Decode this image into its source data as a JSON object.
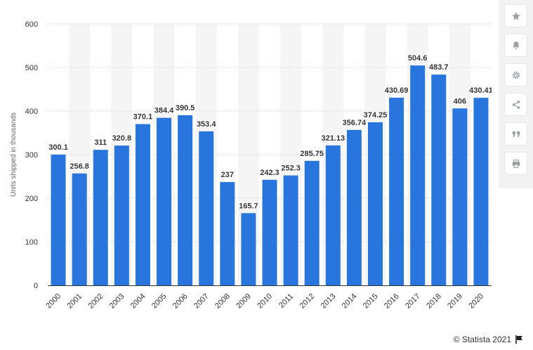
{
  "chart_data": {
    "type": "bar",
    "categories": [
      "2000",
      "2001",
      "2002",
      "2003",
      "2004",
      "2005",
      "2006",
      "2007",
      "2008",
      "2009",
      "2010",
      "2011",
      "2012",
      "2013",
      "2014",
      "2015",
      "2016",
      "2017",
      "2018",
      "2019",
      "2020"
    ],
    "values": [
      300.1,
      256.8,
      311,
      320.8,
      370.1,
      384.4,
      390.5,
      353.4,
      237,
      165.7,
      242.3,
      252.3,
      285.75,
      321.13,
      356.74,
      374.25,
      430.69,
      504.6,
      483.7,
      406,
      430.41
    ],
    "value_labels": [
      "300.1",
      "256.8",
      "311",
      "320.8",
      "370.1",
      "384.4",
      "390.5",
      "353.4",
      "237",
      "165.7",
      "242.3",
      "252.3",
      "285.75",
      "321.13",
      "356.74",
      "374.25",
      "430.69",
      "504.6",
      "483.7",
      "406",
      "430.41"
    ],
    "ylabel": "Units shipped in thousands",
    "ylim": [
      0,
      600
    ],
    "yticks": [
      0,
      100,
      200,
      300,
      400,
      500,
      600
    ],
    "grid": true,
    "bar_color": "#2876dd",
    "band_color": "#f5f5f5"
  },
  "toolbar": {
    "buttons": [
      "star-icon",
      "bell-icon",
      "gear-icon",
      "share-icon",
      "quote-icon",
      "print-icon"
    ]
  },
  "credit": {
    "text": "© Statista 2021",
    "icon": "flag-icon"
  }
}
